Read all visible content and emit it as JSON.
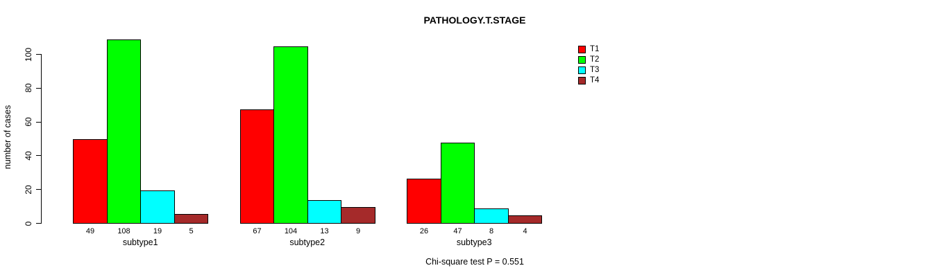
{
  "chart_data": {
    "type": "bar",
    "title": "PATHOLOGY.T.STAGE",
    "xlabel": "",
    "ylabel": "number of cases",
    "categories": [
      "subtype1",
      "subtype2",
      "subtype3"
    ],
    "series": [
      {
        "name": "T1",
        "color": "#FF0000",
        "values": [
          49,
          67,
          26
        ]
      },
      {
        "name": "T2",
        "color": "#00FF00",
        "values": [
          108,
          104,
          47
        ]
      },
      {
        "name": "T3",
        "color": "#00FFFF",
        "values": [
          19,
          13,
          8
        ]
      },
      {
        "name": "T4",
        "color": "#A52A2A",
        "values": [
          5,
          9,
          4
        ]
      }
    ],
    "bar_value_labels": [
      [
        "49",
        "108",
        "19",
        "5"
      ],
      [
        "67",
        "104",
        "13",
        "9"
      ],
      [
        "26",
        "47",
        "8",
        "4"
      ]
    ],
    "yticks": [
      "0",
      "20",
      "40",
      "60",
      "80",
      "100"
    ],
    "ylim": [
      0,
      100
    ],
    "grid": false,
    "legend_position": "right",
    "legend_entries": [
      "T1",
      "T2",
      "T3",
      "T4"
    ],
    "footnote": "Chi-square test P = 0.551",
    "axis_color": "#000000",
    "background_color": "#FFFFFF"
  }
}
